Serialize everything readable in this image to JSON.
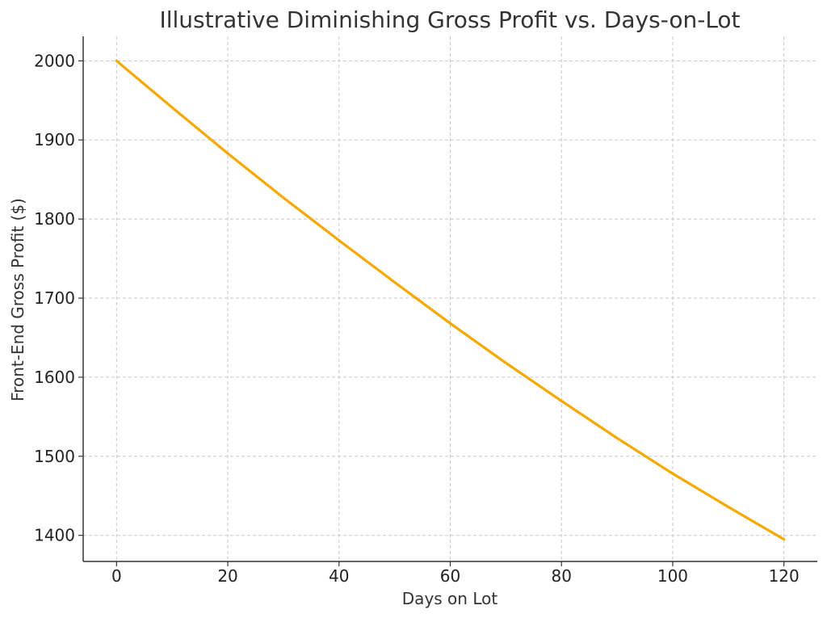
{
  "chart_data": {
    "type": "line",
    "title": "Illustrative Diminishing Gross Profit vs. Days-on-Lot",
    "xlabel": "Days on Lot",
    "ylabel": "Front-End Gross Profit ($)",
    "xlim": [
      -6,
      126
    ],
    "ylim": [
      1367,
      2031
    ],
    "x_ticks": [
      0,
      20,
      40,
      60,
      80,
      100,
      120
    ],
    "y_ticks": [
      1400,
      1500,
      1600,
      1700,
      1800,
      1900,
      2000
    ],
    "grid": true,
    "colors": {
      "line": "#f5a800",
      "grid": "#c8c8c8",
      "axis": "#333333"
    },
    "series": [
      {
        "x": [
          0,
          10,
          20,
          30,
          40,
          50,
          60,
          70,
          80,
          90,
          100,
          110,
          120
        ],
        "y": [
          2000,
          1941,
          1883,
          1827,
          1773,
          1720,
          1668,
          1618,
          1570,
          1523,
          1478,
          1436,
          1395
        ]
      }
    ]
  }
}
